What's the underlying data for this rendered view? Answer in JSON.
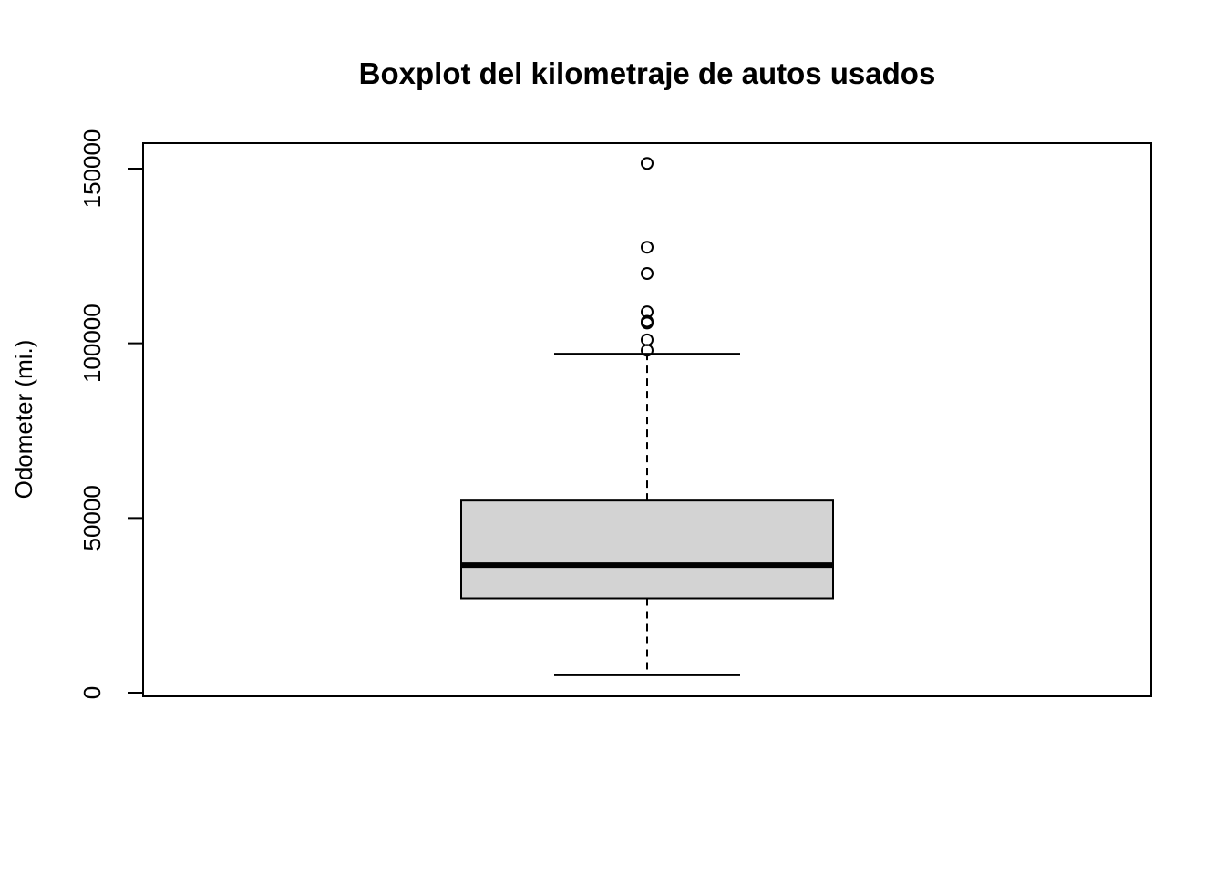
{
  "chart_data": {
    "type": "box",
    "title": "Boxplot del kilometraje de autos usados",
    "xlabel": "",
    "ylabel": "Odometer (mi.)",
    "ylim": [
      0,
      158000
    ],
    "yticks": [
      0,
      50000,
      100000,
      150000
    ],
    "ytick_labels": [
      "0",
      "50000",
      "100000",
      "150000"
    ],
    "grid": false,
    "box": {
      "lower_whisker": 5000,
      "q1": 27000,
      "median": 36500,
      "q3": 55000,
      "upper_whisker": 97000,
      "outliers": [
        98000,
        101000,
        105800,
        106300,
        109000,
        120000,
        127500,
        151500
      ]
    },
    "colors": {
      "box_fill": "#d3d3d3",
      "stroke": "#000000"
    }
  }
}
